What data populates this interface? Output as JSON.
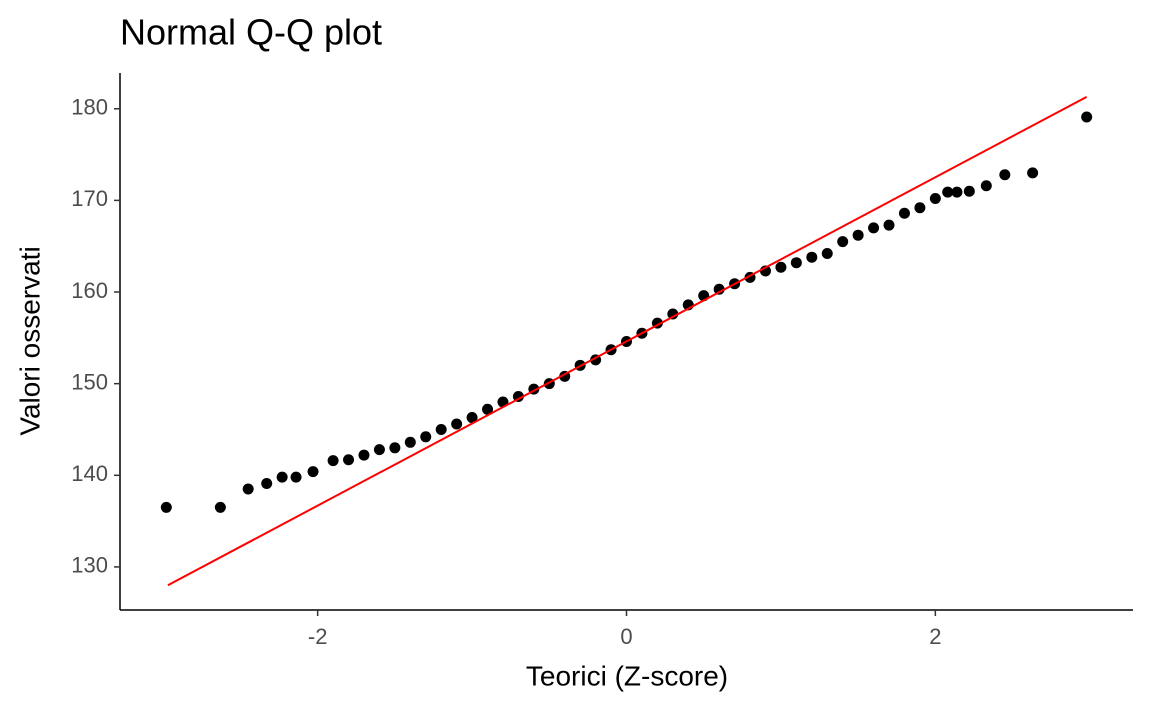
{
  "chart_data": {
    "type": "scatter",
    "title": "Normal Q-Q plot",
    "x_label": "Teorici (Z-score)",
    "y_label": "Valori osservati",
    "x": [
      -2.98,
      -2.63,
      -2.45,
      -2.33,
      -2.23,
      -2.14,
      -2.03,
      -1.9,
      -1.8,
      -1.7,
      -1.6,
      -1.5,
      -1.4,
      -1.3,
      -1.2,
      -1.1,
      -1.0,
      -0.9,
      -0.8,
      -0.7,
      -0.6,
      -0.5,
      -0.4,
      -0.3,
      -0.2,
      -0.1,
      0.0,
      0.1,
      0.2,
      0.3,
      0.4,
      0.5,
      0.6,
      0.7,
      0.8,
      0.9,
      1.0,
      1.1,
      1.2,
      1.3,
      1.4,
      1.5,
      1.6,
      1.7,
      1.8,
      1.9,
      2.0,
      2.08,
      2.14,
      2.22,
      2.33,
      2.45,
      2.63,
      2.98
    ],
    "y": [
      136.5,
      136.5,
      138.5,
      139.1,
      139.8,
      139.8,
      140.4,
      141.6,
      141.7,
      142.2,
      142.8,
      143.0,
      143.6,
      144.2,
      145.0,
      145.6,
      146.3,
      147.2,
      148.0,
      148.6,
      149.4,
      150.0,
      150.8,
      152.0,
      152.6,
      153.7,
      154.6,
      155.5,
      156.6,
      157.6,
      158.6,
      159.6,
      160.3,
      160.9,
      161.6,
      162.3,
      162.7,
      163.2,
      163.8,
      164.2,
      165.5,
      166.2,
      167.0,
      167.3,
      168.6,
      169.2,
      170.2,
      170.9,
      170.9,
      171.0,
      171.6,
      172.8,
      173.0,
      179.1
    ],
    "color": "#000000",
    "reference_line": {
      "x": [
        -2.97,
        2.98
      ],
      "y": [
        128.0,
        181.3
      ],
      "color": "#ff0000"
    },
    "xlim": [
      -3.28,
      3.28
    ],
    "xticks": [
      -2,
      0,
      2
    ],
    "ylim": [
      125.3,
      183.9
    ],
    "yticks": [
      130,
      140,
      150,
      160,
      170,
      180
    ],
    "grid": false
  }
}
